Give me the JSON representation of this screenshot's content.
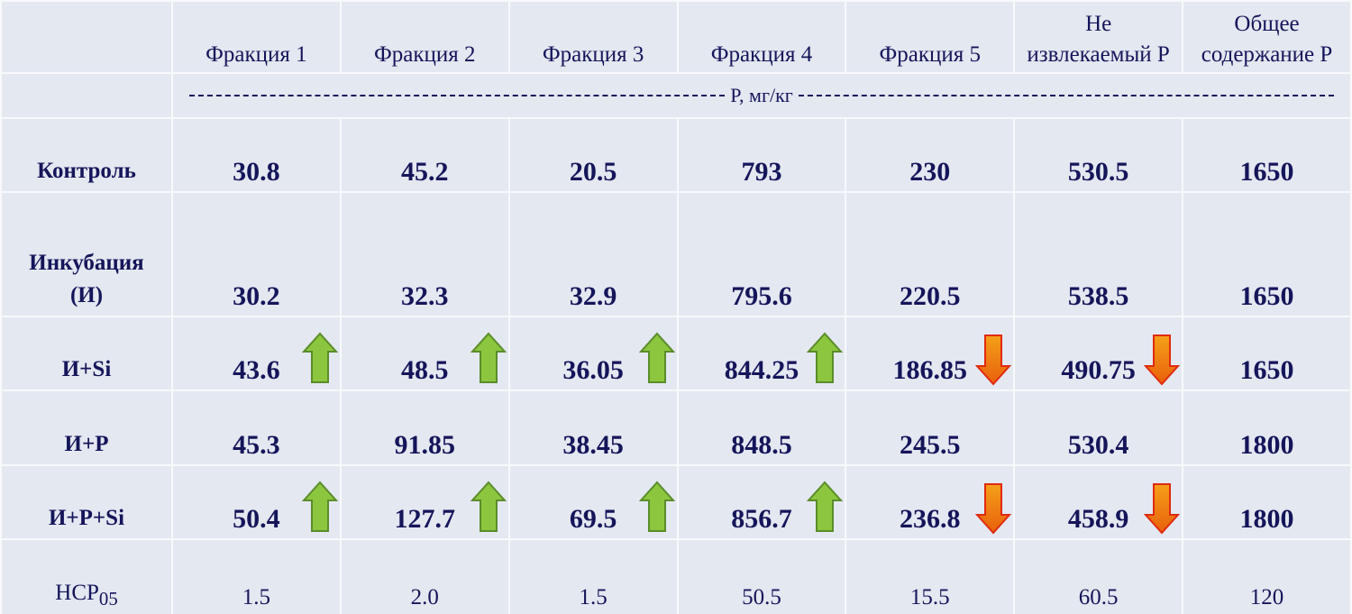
{
  "table": {
    "header": [
      "Фракция 1",
      "Фракция 2",
      "Фракция 3",
      "Фракция 4",
      "Фракция 5",
      "Не извлекаемый P",
      "Общее содержание P"
    ],
    "unit": "P, мг/кг",
    "rows": [
      {
        "label": "Контроль",
        "values": [
          "30.8",
          "45.2",
          "20.5",
          "793",
          "230",
          "530.5",
          "1650"
        ]
      },
      {
        "label": "Инкубация (И)",
        "values": [
          "30.2",
          "32.3",
          "32.9",
          "795.6",
          "220.5",
          "538.5",
          "1650"
        ]
      },
      {
        "label": "И+Si",
        "values": [
          "43.6",
          "48.5",
          "36.05",
          "844.25",
          "186.85",
          "490.75",
          "1650"
        ]
      },
      {
        "label": "И+P",
        "values": [
          "45.3",
          "91.85",
          "38.45",
          "848.5",
          "245.5",
          "530.4",
          "1800"
        ]
      },
      {
        "label": "И+P+Si",
        "values": [
          "50.4",
          "127.7",
          "69.5",
          "856.7",
          "236.8",
          "458.9",
          "1800"
        ]
      }
    ],
    "lsd": {
      "label": "НСР",
      "sub": "05",
      "values": [
        "1.5",
        "2.0",
        "1.5",
        "50.5",
        "15.5",
        "60.5",
        "120"
      ]
    }
  }
}
